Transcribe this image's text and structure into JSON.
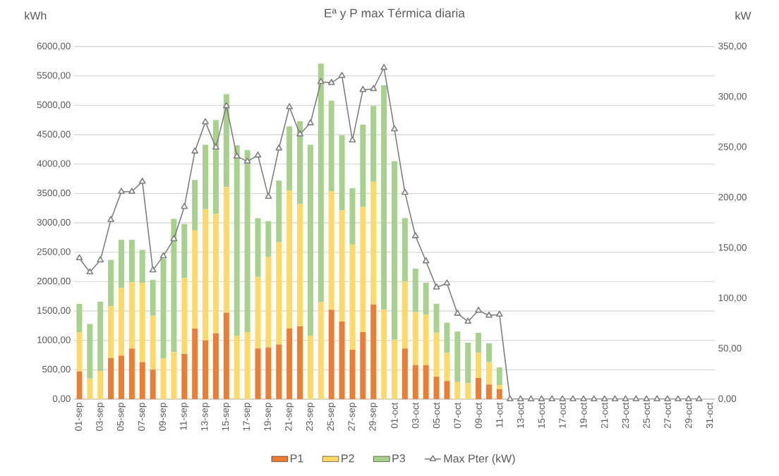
{
  "chart_data": {
    "type": "bar",
    "title": "Eª y P max Térmica diaria",
    "ylabel": "kWh",
    "y2label": "kW",
    "categories": [
      "01-sep",
      null,
      "03-sep",
      null,
      "05-sep",
      null,
      "07-sep",
      null,
      "09-sep",
      null,
      "11-sep",
      null,
      "13-sep",
      null,
      "15-sep",
      null,
      "17-sep",
      null,
      "19-sep",
      null,
      "21-sep",
      null,
      "23-sep",
      null,
      "25-sep",
      null,
      "27-sep",
      null,
      "29-sep",
      null,
      "01-oct",
      null,
      "03-oct",
      null,
      "05-oct",
      null,
      "07-oct",
      null,
      "09-oct",
      null,
      "11-oct",
      null,
      "13-oct",
      null,
      "15-oct",
      null,
      "17-oct",
      null,
      "19-oct",
      null,
      "21-oct",
      null,
      "23-oct",
      null,
      "25-oct",
      null,
      "27-oct",
      null,
      "29-oct",
      null,
      "31-oct"
    ],
    "stacked": true,
    "grid": "y",
    "legend": "bottom",
    "marker": "triangle",
    "ylim": [
      0,
      6000
    ],
    "yticks": [
      {
        "value": 0,
        "label": "0,00"
      },
      {
        "value": 500,
        "label": "500,00"
      },
      {
        "value": 1000,
        "label": "1000,00"
      },
      {
        "value": 1500,
        "label": "1500,00"
      },
      {
        "value": 2000,
        "label": "2000,00"
      },
      {
        "value": 2500,
        "label": "2500,00"
      },
      {
        "value": 3000,
        "label": "3000,00"
      },
      {
        "value": 3500,
        "label": "3500,00"
      },
      {
        "value": 4000,
        "label": "4000,00"
      },
      {
        "value": 4500,
        "label": "4500,00"
      },
      {
        "value": 5000,
        "label": "5000,00"
      },
      {
        "value": 5500,
        "label": "5500,00"
      },
      {
        "value": 6000,
        "label": "6000,00"
      }
    ],
    "y2lim": [
      0,
      350
    ],
    "y2ticks": [
      {
        "value": 0,
        "label": "0,00"
      },
      {
        "value": 50,
        "label": "50,00"
      },
      {
        "value": 100,
        "label": "100,00"
      },
      {
        "value": 150,
        "label": "150,00"
      },
      {
        "value": 200,
        "label": "200,00"
      },
      {
        "value": 250,
        "label": "250,00"
      },
      {
        "value": 300,
        "label": "300,00"
      },
      {
        "value": 350,
        "label": "350,00"
      }
    ],
    "series": [
      {
        "name": "P1",
        "type": "bar",
        "color": "#ed7d31",
        "values": [
          470,
          0,
          0,
          700,
          740,
          860,
          630,
          500,
          0,
          0,
          770,
          1200,
          1000,
          1120,
          1470,
          0,
          0,
          860,
          880,
          930,
          1200,
          1240,
          0,
          0,
          1520,
          1320,
          840,
          1140,
          1610,
          0,
          0,
          860,
          580,
          580,
          380,
          310,
          0,
          0,
          360,
          250,
          170,
          0,
          0,
          0,
          0,
          0,
          0,
          0,
          0,
          0,
          0,
          0,
          0,
          0,
          0,
          0,
          0,
          0,
          0,
          0,
          0
        ]
      },
      {
        "name": "P2",
        "type": "bar",
        "color": "#ffd966",
        "values": [
          670,
          350,
          480,
          880,
          1150,
          1130,
          1350,
          920,
          690,
          800,
          1290,
          1670,
          2230,
          2030,
          2140,
          1080,
          1140,
          1220,
          1540,
          1740,
          2350,
          2080,
          1080,
          1650,
          2020,
          1890,
          1790,
          2130,
          2090,
          1520,
          1010,
          1140,
          900,
          860,
          750,
          480,
          290,
          270,
          430,
          380,
          70,
          0,
          0,
          0,
          0,
          0,
          0,
          0,
          0,
          0,
          0,
          0,
          0,
          0,
          0,
          0,
          0,
          0,
          0,
          0,
          0
        ]
      },
      {
        "name": "P3",
        "type": "bar",
        "color": "#a9d18e",
        "values": [
          480,
          930,
          1180,
          790,
          820,
          720,
          560,
          610,
          1700,
          2270,
          920,
          860,
          1100,
          1600,
          1580,
          3240,
          3100,
          1000,
          610,
          1050,
          1090,
          1410,
          3250,
          4060,
          1540,
          1280,
          960,
          1400,
          1290,
          3820,
          3040,
          1080,
          740,
          540,
          490,
          510,
          860,
          690,
          340,
          320,
          300,
          0,
          0,
          0,
          0,
          0,
          0,
          0,
          0,
          0,
          0,
          0,
          0,
          0,
          0,
          0,
          0,
          0,
          0,
          0,
          0
        ]
      },
      {
        "name": "Max Pter (kW)",
        "type": "line",
        "axis": "y2",
        "color": "#7f7f7f",
        "values": [
          140,
          126,
          138,
          178,
          206,
          206,
          216,
          128,
          142,
          159,
          191,
          246,
          275,
          250,
          291,
          241,
          236,
          242,
          201,
          249,
          290,
          263,
          274,
          315,
          314,
          321,
          257,
          307,
          308,
          329,
          268,
          205,
          162,
          137,
          111,
          115,
          85,
          77,
          88,
          83,
          84,
          0,
          0,
          0,
          0,
          0,
          0,
          0,
          0,
          0,
          0,
          0,
          0,
          0,
          0,
          0,
          0,
          0,
          0,
          0,
          null
        ]
      }
    ]
  }
}
